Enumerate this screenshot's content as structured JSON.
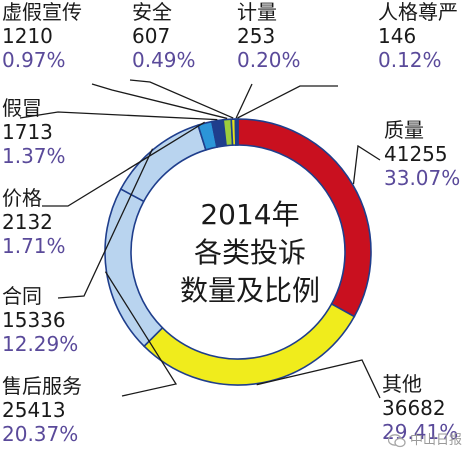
{
  "chart_data": {
    "type": "pie",
    "title_lines": [
      "2014年",
      "各类投诉",
      "数量及比例"
    ],
    "slices": [
      {
        "name": "质量",
        "value": 41255,
        "percent": "33.07%",
        "color": "#c9101f"
      },
      {
        "name": "其他",
        "value": 36682,
        "percent": "29.41%",
        "color": "#f0ec1c"
      },
      {
        "name": "售后服务",
        "value": 25413,
        "percent": "20.37%",
        "color": "#b9d4ef"
      },
      {
        "name": "合同",
        "value": 15336,
        "percent": "12.29%",
        "color": "#b9d4ef"
      },
      {
        "name": "价格",
        "value": 2132,
        "percent": "1.71%",
        "color": "#2b95d8"
      },
      {
        "name": "假冒",
        "value": 1713,
        "percent": "1.37%",
        "color": "#1f3e8c"
      },
      {
        "name": "虚假宣传",
        "value": 1210,
        "percent": "0.97%",
        "color": "#9ccc3c"
      },
      {
        "name": "安全",
        "value": 607,
        "percent": "0.49%",
        "color": "#e6e21a"
      },
      {
        "name": "计量",
        "value": 253,
        "percent": "0.20%",
        "color": "#7a7a7a"
      },
      {
        "name": "人格尊严",
        "value": 146,
        "percent": "0.12%",
        "color": "#117a3a"
      }
    ]
  },
  "watermark": "中山日报"
}
